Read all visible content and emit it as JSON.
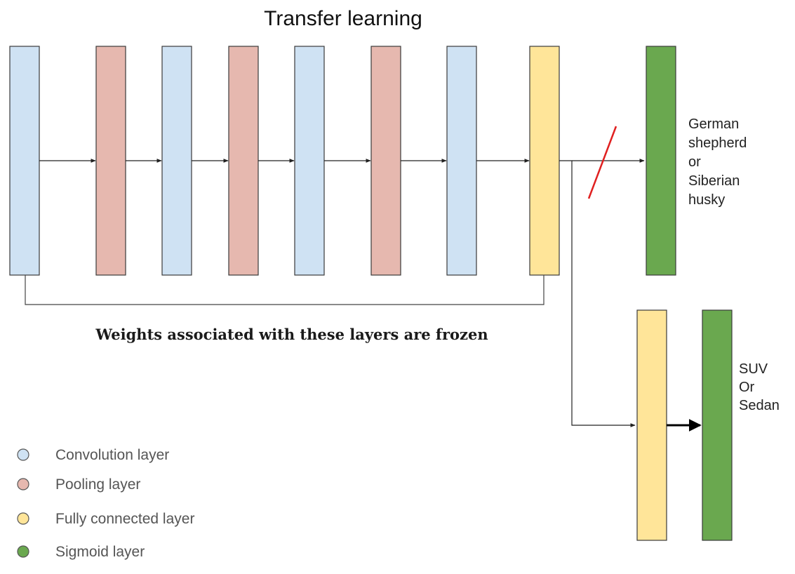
{
  "title": "Transfer learning",
  "colors": {
    "convolution": "#cfe2f3",
    "pooling": "#e6b8af",
    "fully_connected": "#ffe599",
    "sigmoid": "#6aa84f",
    "cut_mark": "#e02020"
  },
  "main_layers": [
    "convolution",
    "pooling",
    "convolution",
    "pooling",
    "convolution",
    "pooling",
    "convolution",
    "fully_connected"
  ],
  "original_head": {
    "layer": "sigmoid",
    "output_label": [
      "German",
      "shepherd",
      "or",
      "Siberian",
      "husky"
    ]
  },
  "new_head": {
    "layers": [
      "fully_connected",
      "sigmoid"
    ],
    "output_label": [
      "SUV",
      "Or",
      "Sedan"
    ]
  },
  "frozen_note": "Weights associated with these layers are frozen",
  "legend": [
    {
      "type": "convolution",
      "label": "Convolution layer"
    },
    {
      "type": "pooling",
      "label": "Pooling layer"
    },
    {
      "type": "fully_connected",
      "label": "Fully connected layer"
    },
    {
      "type": "sigmoid",
      "label": "Sigmoid layer"
    }
  ]
}
